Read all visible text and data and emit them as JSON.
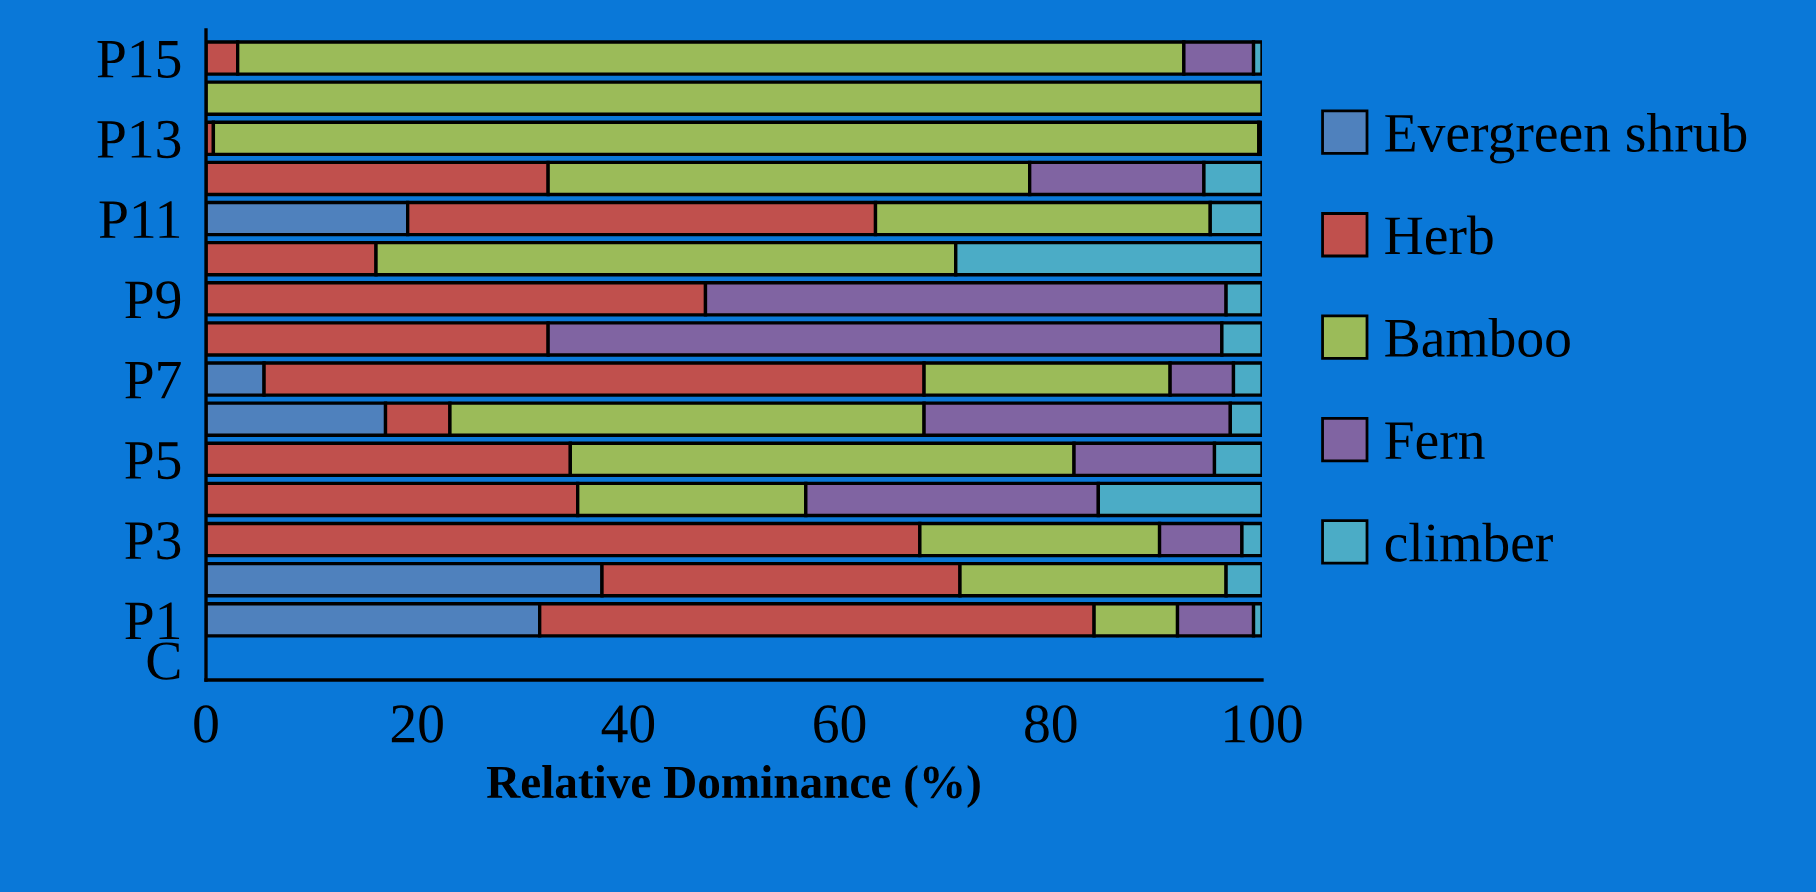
{
  "chart_data": {
    "type": "bar",
    "orientation": "horizontal",
    "stacked": true,
    "xlabel": "Relative Dominance (%)",
    "categories": [
      "P15",
      null,
      "P13",
      null,
      "P11",
      null,
      "P9",
      null,
      "P7",
      null,
      "P5",
      null,
      "P3",
      null,
      "P1",
      "C"
    ],
    "series": [
      {
        "name": "Evergreen shrub",
        "color": "#4f81bd",
        "values": [
          0,
          0,
          0,
          0,
          19.1,
          0,
          0,
          0,
          5.5,
          17,
          0,
          0,
          0,
          37.5,
          31.6,
          null
        ]
      },
      {
        "name": "Herb",
        "color": "#c0504d",
        "values": [
          3,
          0,
          0.7,
          32.4,
          44.3,
          16.1,
          47.3,
          32.4,
          62.5,
          6.1,
          34.5,
          35.2,
          67.6,
          33.9,
          52.5,
          null
        ]
      },
      {
        "name": "Bamboo",
        "color": "#9bbb59",
        "values": [
          89.6,
          100,
          99,
          45.6,
          31.7,
          54.9,
          0,
          0,
          23.3,
          44.9,
          47.7,
          21.6,
          22.7,
          25.2,
          7.9,
          null
        ]
      },
      {
        "name": "Fern",
        "color": "#8064a2",
        "values": [
          6.6,
          0,
          0,
          16.5,
          0,
          0,
          49.3,
          63.8,
          6,
          29,
          13.3,
          27.7,
          7.8,
          0,
          7.2,
          null
        ]
      },
      {
        "name": "climber",
        "color": "#4bacc6",
        "values": [
          0.8,
          0,
          0.3,
          5.5,
          4.9,
          29,
          3.4,
          3.8,
          2.7,
          3,
          4.5,
          15.5,
          1.9,
          3.4,
          0.8,
          null
        ]
      }
    ],
    "xlim": [
      0,
      100
    ],
    "xticks": [
      0,
      20,
      40,
      60,
      80,
      100
    ],
    "grid": false,
    "legend": "right"
  }
}
